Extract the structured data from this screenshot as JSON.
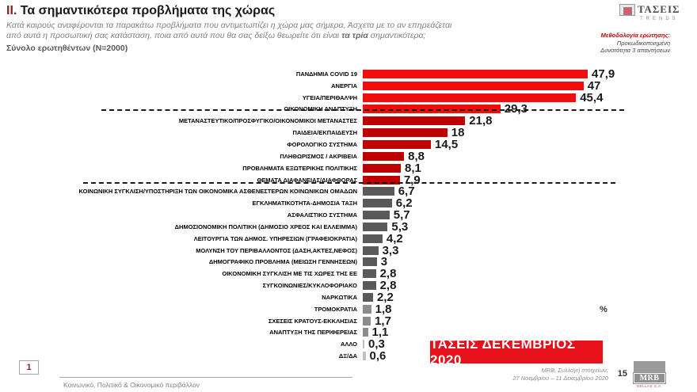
{
  "header": {
    "section_number": "ΙΙ.",
    "title": "Τα σημαντικότερα προβλήματα της χώρας",
    "subtitle_line1": "Κατά καιρούς αναφέρονται τα παρακάτω προβλήματα που αντιμετωπίζει η χώρα μας σήμερα, Άσχετα με το αν επηρεάζεται",
    "subtitle_line2_pre": "από αυτά η προσωπική σας κατάσταση, ποια από αυτά που θα σας δείξω θεωρείτε ότι είναι ",
    "subtitle_line2_bold": "τα τρία",
    "subtitle_line2_post": " σημαντικότερα;",
    "respondents": "Σύνολο ερωτηθέντων (N=2000)",
    "methodology_line1": "Μεθοδολογία ερώτησης:",
    "methodology_line2": "Προκωδικοποιημένη",
    "methodology_line3": "Δυνατότητα 3 απαντήσεων",
    "brand": "ΤΑΣΕΙΣ",
    "brand_sub": "TRENDS"
  },
  "colors": {
    "top": "#f20d0d",
    "mid": "#c00000",
    "gray": "#595959",
    "light": "#8c8c8c",
    "pale": "#c0c0c0",
    "banner_bg": "#e8111a"
  },
  "chart_data": {
    "type": "bar",
    "orientation": "horizontal",
    "unit": "%",
    "percent_label": "%",
    "xlim": [
      0,
      50
    ],
    "grid": false,
    "separators_after_index": [
      3,
      9
    ],
    "items": [
      {
        "label": "ΠΑΝΔΗΜΙΑ COVID 19",
        "value": 47.9,
        "display": "47,9",
        "group": "top"
      },
      {
        "label": "ΑΝΕΡΓΙΑ",
        "value": 47,
        "display": "47",
        "group": "top"
      },
      {
        "label": "ΥΓΕΙΑ/ΠΕΡΙΘΑΛΨΗ",
        "value": 45.4,
        "display": "45,4",
        "group": "top"
      },
      {
        "label": "ΟΙΚΟΝΟΜΙΚΗ ΑΝΑΠΤΥΞΗ",
        "value": 29.3,
        "display": "29,3",
        "group": "top"
      },
      {
        "label": "ΜΕΤΑΝΑΣΤΕΥΤΙΚΟ/ΠΡΟΣΦΥΓΙΚΟ/ΟΙΚΟΝΟΜΙΚΟΙ ΜΕΤΑΝΑΣΤΕΣ",
        "value": 21.8,
        "display": "21,8",
        "group": "mid"
      },
      {
        "label": "ΠΑΙΔΕΙΑ/ΕΚΠΑΙΔΕΥΣΗ",
        "value": 18,
        "display": "18",
        "group": "mid"
      },
      {
        "label": "ΦΟΡΟΛΟΓΙΚΟ ΣΥΣΤΗΜΑ",
        "value": 14.5,
        "display": "14,5",
        "group": "mid"
      },
      {
        "label": "ΠΛΗΘΩΡΙΣΜΟΣ / ΑΚΡΙΒΕΙΑ",
        "value": 8.8,
        "display": "8,8",
        "group": "mid"
      },
      {
        "label": "ΠΡΟΒΛΗΜΑΤΑ ΕΞΩΤΕΡΙΚΗΣ ΠΟΛΙΤΙΚΗΣ",
        "value": 8.1,
        "display": "8,1",
        "group": "mid"
      },
      {
        "label": "ΘΕΜΑΤΑ ΔΙΑΦΑΝΕΙΑΣ/ΔΙΑΦΘΟΡΑΣ",
        "value": 7.9,
        "display": "7,9",
        "group": "mid"
      },
      {
        "label": "ΚΟΙΝΩΝΙΚΗ ΣΥΓΚΛΙΣΗ/ΥΠΟΣΤΗΡΙΞΗ ΤΩΝ ΟΙΚΟΝΟΜΙΚΑ ΑΣΘΕΝΕΣΤΕΡΩΝ ΚΟΙΝΩΝΙΚΩΝ ΟΜΑΔΩΝ",
        "value": 6.7,
        "display": "6,7",
        "group": "gray"
      },
      {
        "label": "ΕΓΚΛΗΜΑΤΙΚΟΤΗΤΑ-ΔΗΜΟΣΙΑ ΤΑΞΗ",
        "value": 6.2,
        "display": "6,2",
        "group": "gray"
      },
      {
        "label": "ΑΣΦΑΛΙΣΤΙΚΟ ΣΥΣΤΗΜΑ",
        "value": 5.7,
        "display": "5,7",
        "group": "gray"
      },
      {
        "label": "ΔΗΜΟΣΙΟΝΟΜΙΚΗ ΠΟΛΙΤΙΚΗ (ΔΗΜΟΣΙΟ ΧΡΕΟΣ ΚΑΙ ΕΛΛΕΙΜΜΑ)",
        "value": 5.3,
        "display": "5,3",
        "group": "gray"
      },
      {
        "label": "ΛΕΙΤΟΥΡΓΙΑ ΤΩΝ ΔΗΜΟΣ. ΥΠΗΡΕΣΙΩΝ (ΓΡΑΦΕΙΟΚΡΑΤΙΑ)",
        "value": 4.2,
        "display": "4,2",
        "group": "gray"
      },
      {
        "label": "ΜΟΛΥΝΣΗ ΤΟΥ ΠΕΡΙΒΑΛΛΟΝΤΟΣ (ΔΑΣΗ,ΑΚΤΕΣ,ΝΕΦΟΣ)",
        "value": 3.3,
        "display": "3,3",
        "group": "gray"
      },
      {
        "label": "ΔΗΜΟΓΡΑΦΙΚΟ ΠΡΟΒΛΗΜΑ (ΜΕΙΩΣΗ ΓΕΝΝΗΣΕΩΝ)",
        "value": 3,
        "display": "3",
        "group": "gray"
      },
      {
        "label": "ΟΙΚΟΝΟΜΙΚΗ ΣΥΓΚΛΙΣΗ ΜΕ ΤΙΣ ΧΩΡΕΣ ΤΗΣ ΕΕ",
        "value": 2.8,
        "display": "2,8",
        "group": "gray"
      },
      {
        "label": "ΣΥΓΚΟΙΝΩΝΙΕΣ/ΚΥΚΛΟΦΟΡΙΑΚΟ",
        "value": 2.8,
        "display": "2,8",
        "group": "gray"
      },
      {
        "label": "ΝΑΡΚΩΤΙΚΑ",
        "value": 2.2,
        "display": "2,2",
        "group": "gray"
      },
      {
        "label": "ΤΡΟΜΟΚΡΑΤΙΑ",
        "value": 1.8,
        "display": "1,8",
        "group": "light"
      },
      {
        "label": "ΣΧΕΣΕΙΣ ΚΡΑΤΟΥΣ-ΕΚΚΛΗΣΙΑΣ",
        "value": 1.7,
        "display": "1,7",
        "group": "light"
      },
      {
        "label": "ΑΝΑΠΤΥΞΗ ΤΗΣ ΠΕΡΙΦΕΡΕΙΑΣ",
        "value": 1.1,
        "display": "1,1",
        "group": "light"
      },
      {
        "label": "ΑΛΛΟ",
        "value": 0.3,
        "display": "0,3",
        "group": "pale"
      },
      {
        "label": "ΔΞ/ΔΑ",
        "value": 0.6,
        "display": "0,6",
        "group": "pale"
      }
    ]
  },
  "banner": {
    "text": "ΤΑΣΕΙΣ ΔΕΚΕΜΒΡΙΟΣ 2020"
  },
  "footer": {
    "page_box": "1",
    "footnote": "Κοινωνικό, Πολιτικό & Οικονομικό περιβάλλον",
    "source_line1": "MRB, Συλλογή στοιχείων:",
    "source_line2": "27 Νοεμβρίου – 11 Δεκεμβρίου 2020",
    "page_number": "15",
    "logo_brand": "MRB",
    "logo_sub": "HELLAS S.A."
  }
}
